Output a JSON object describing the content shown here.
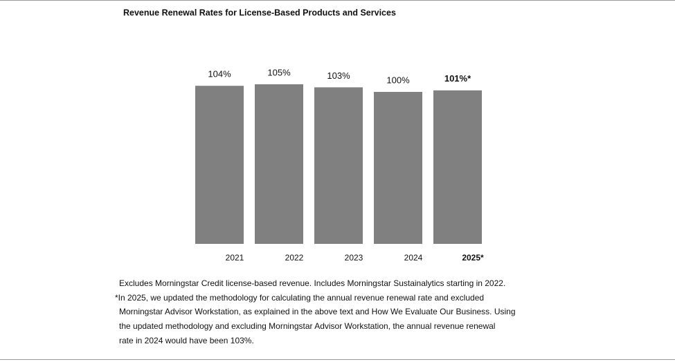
{
  "chart_data": {
    "type": "bar",
    "title": "Revenue Renewal Rates for License-Based Products and Services",
    "categories": [
      "2021",
      "2022",
      "2023",
      "2024",
      "2025*"
    ],
    "values": [
      104,
      105,
      103,
      100,
      101
    ],
    "value_labels": [
      "104%",
      "105%",
      "103%",
      "100%",
      "101%*"
    ],
    "color": "#808080",
    "notes": [
      "Excludes Morningstar Credit license-based revenue. Includes Morningstar Sustainalytics starting in 2022.",
      "*In 2025, we updated the methodology for calculating the annual revenue renewal rate and excluded",
      "Morningstar Advisor Workstation, as explained in the above text and How We Evaluate Our Business. Using",
      "the updated methodology and excluding Morningstar Advisor Workstation, the annual revenue renewal",
      "rate in 2024 would have been 103%."
    ]
  }
}
